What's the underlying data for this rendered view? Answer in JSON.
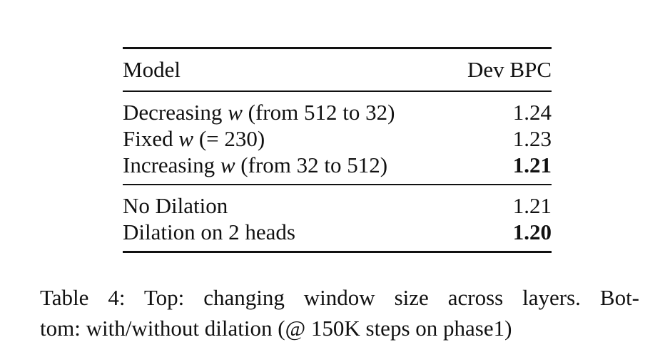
{
  "table": {
    "header": {
      "model": "Model",
      "metric": "Dev BPC"
    },
    "groups": [
      {
        "rows": [
          {
            "pre": "Decreasing ",
            "var": "w",
            "post": " (from 512 to 32)",
            "value": "1.24",
            "bold": false
          },
          {
            "pre": "Fixed ",
            "var": "w",
            "post": " (= 230)",
            "value": "1.23",
            "bold": false
          },
          {
            "pre": "Increasing ",
            "var": "w",
            "post": " (from 32 to 512)",
            "value": "1.21",
            "bold": true
          }
        ]
      },
      {
        "rows": [
          {
            "pre": "No Dilation",
            "var": "",
            "post": "",
            "value": "1.21",
            "bold": false
          },
          {
            "pre": "Dilation on 2 heads",
            "var": "",
            "post": "",
            "value": "1.20",
            "bold": true
          }
        ]
      }
    ]
  },
  "caption": {
    "line1": "Table 4: Top: changing window size across layers. Bot-",
    "line2": "tom: with/without dilation (@ 150K steps on phase1)"
  }
}
